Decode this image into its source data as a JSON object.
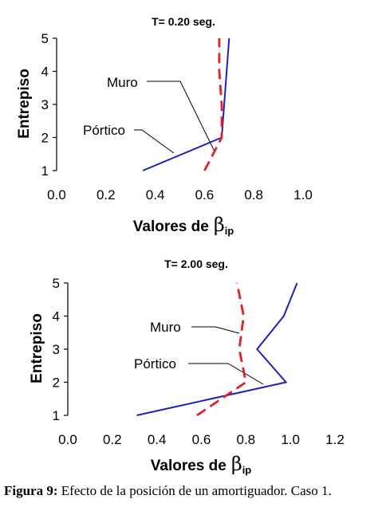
{
  "caption": {
    "label": "Figura 9:",
    "text": " Efecto de la posición de un amortiguador. Caso 1."
  },
  "colors": {
    "muro": "#1f1fbf",
    "portico": "#e0202a"
  },
  "chart_data": [
    {
      "type": "line",
      "title": "T= 0.20 seg.",
      "xlabel": "Valores de",
      "xlabel_symbol": "β",
      "xlabel_sub": "ip",
      "ylabel": "Entrepiso",
      "xlim": [
        0,
        1.0
      ],
      "ylim": [
        1,
        5
      ],
      "xticks": [
        "0.0",
        "0.2",
        "0.4",
        "0.6",
        "0.8",
        "1.0"
      ],
      "yticks": [
        "1",
        "2",
        "3",
        "4",
        "5"
      ],
      "grid": false,
      "series": [
        {
          "name": "Muro",
          "style": "solid",
          "x": [
            0.35,
            0.67,
            0.68,
            0.69,
            0.7
          ],
          "y": [
            1,
            2,
            3,
            4,
            5
          ]
        },
        {
          "name": "Pórtico",
          "style": "dashed",
          "x": [
            0.6,
            0.67,
            0.67,
            0.66,
            0.66
          ],
          "y": [
            1,
            2,
            3,
            4,
            5
          ]
        }
      ],
      "annotations": [
        {
          "text": "Muro",
          "target_x": 0.64,
          "target_y": 1.9
        },
        {
          "text": "Pórtico",
          "target_x": 0.48,
          "target_y": 1.5
        }
      ]
    },
    {
      "type": "line",
      "title": "T= 2.00 seg.",
      "xlabel": "Valores de",
      "xlabel_symbol": "β",
      "xlabel_sub": "ip",
      "ylabel": "Entrepiso",
      "xlim": [
        0,
        1.2
      ],
      "ylim": [
        1,
        5
      ],
      "xticks": [
        "0.0",
        "0.2",
        "0.4",
        "0.6",
        "0.8",
        "1.0",
        "1.2"
      ],
      "yticks": [
        "1",
        "2",
        "3",
        "4",
        "5"
      ],
      "grid": false,
      "series": [
        {
          "name": "Muro",
          "style": "solid",
          "x": [
            0.31,
            0.98,
            0.85,
            0.97,
            1.03
          ],
          "y": [
            1,
            2,
            3,
            4,
            5
          ]
        },
        {
          "name": "Pórtico",
          "style": "dashed",
          "x": [
            0.58,
            0.8,
            0.77,
            0.79,
            0.76
          ],
          "y": [
            1,
            2,
            3,
            4,
            5
          ]
        }
      ],
      "annotations": [
        {
          "text": "Muro",
          "target_x": 0.79,
          "target_y": 3.9
        },
        {
          "text": "Pórtico",
          "target_x": 0.92,
          "target_y": 2.1
        }
      ]
    }
  ]
}
